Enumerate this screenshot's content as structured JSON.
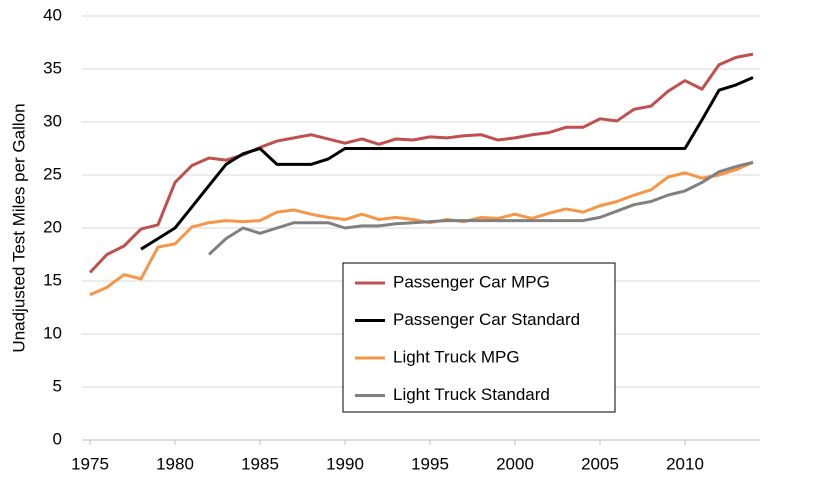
{
  "chart_data": {
    "type": "line",
    "y_label": "Unadjusted Test Miles per Gallon",
    "x": [
      1975,
      1976,
      1977,
      1978,
      1979,
      1980,
      1981,
      1982,
      1983,
      1984,
      1985,
      1986,
      1987,
      1988,
      1989,
      1990,
      1991,
      1992,
      1993,
      1994,
      1995,
      1996,
      1997,
      1998,
      1999,
      2000,
      2001,
      2002,
      2003,
      2004,
      2005,
      2006,
      2007,
      2008,
      2009,
      2010,
      2011,
      2012,
      2013,
      2014
    ],
    "series": [
      {
        "name": "Passenger Car MPG",
        "color": "#c0504d",
        "values": [
          15.8,
          17.5,
          18.3,
          19.9,
          20.3,
          24.3,
          25.9,
          26.6,
          26.4,
          26.9,
          27.6,
          28.2,
          28.5,
          28.8,
          28.4,
          28.0,
          28.4,
          27.9,
          28.4,
          28.3,
          28.6,
          28.5,
          28.7,
          28.8,
          28.3,
          28.5,
          28.8,
          29.0,
          29.5,
          29.5,
          30.3,
          30.1,
          31.2,
          31.5,
          32.9,
          33.9,
          33.1,
          35.4,
          36.1,
          36.4
        ]
      },
      {
        "name": "Passenger Car Standard",
        "color": "#000000",
        "values": [
          null,
          null,
          null,
          18.0,
          19.0,
          20.0,
          22.0,
          24.0,
          26.0,
          27.0,
          27.5,
          26.0,
          26.0,
          26.0,
          26.5,
          27.5,
          27.5,
          27.5,
          27.5,
          27.5,
          27.5,
          27.5,
          27.5,
          27.5,
          27.5,
          27.5,
          27.5,
          27.5,
          27.5,
          27.5,
          27.5,
          27.5,
          27.5,
          27.5,
          27.5,
          27.5,
          30.2,
          33.0,
          33.5,
          34.2
        ]
      },
      {
        "name": "Light Truck MPG",
        "color": "#f79646",
        "values": [
          13.7,
          14.4,
          15.6,
          15.2,
          18.2,
          18.5,
          20.1,
          20.5,
          20.7,
          20.6,
          20.7,
          21.5,
          21.7,
          21.3,
          21.0,
          20.8,
          21.3,
          20.8,
          21.0,
          20.8,
          20.5,
          20.8,
          20.6,
          21.0,
          20.9,
          21.3,
          20.9,
          21.4,
          21.8,
          21.5,
          22.1,
          22.5,
          23.1,
          23.6,
          24.8,
          25.2,
          24.7,
          25.0,
          25.5,
          26.2
        ]
      },
      {
        "name": "Light Truck Standard",
        "color": "#808080",
        "values": [
          null,
          null,
          null,
          null,
          null,
          null,
          null,
          17.5,
          19.0,
          20.0,
          19.5,
          20.0,
          20.5,
          20.5,
          20.5,
          20.0,
          20.2,
          20.2,
          20.4,
          20.5,
          20.6,
          20.7,
          20.7,
          20.7,
          20.7,
          20.7,
          20.7,
          20.7,
          20.7,
          20.7,
          21.0,
          21.6,
          22.2,
          22.5,
          23.1,
          23.5,
          24.3,
          25.3,
          25.8,
          26.2
        ]
      }
    ],
    "xlim": [
      1975,
      2014
    ],
    "xticks": [
      1975,
      1980,
      1985,
      1990,
      1995,
      2000,
      2005,
      2010
    ],
    "ylim": [
      0,
      40
    ],
    "yticks": [
      0,
      5,
      10,
      15,
      20,
      25,
      30,
      35,
      40
    ],
    "grid": true,
    "legend": "bottom"
  }
}
